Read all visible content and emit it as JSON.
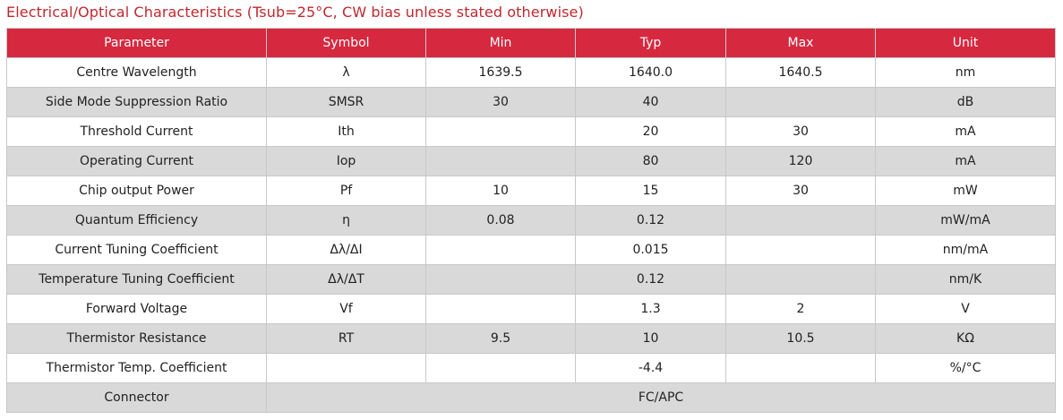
{
  "title": "Electrical/Optical Characteristics (Tsub=25°C, CW bias unless stated otherwise)",
  "headers": [
    "Parameter",
    "Symbol",
    "Min",
    "Typ",
    "Max",
    "Unit"
  ],
  "rows": [
    {
      "parameter": "Centre Wavelength",
      "symbol": "λ",
      "min": "1639.5",
      "typ": "1640.0",
      "max": "1640.5",
      "unit": "nm"
    },
    {
      "parameter": "Side Mode Suppression Ratio",
      "symbol": "SMSR",
      "min": "30",
      "typ": "40",
      "max": "",
      "unit": "dB"
    },
    {
      "parameter": "Threshold Current",
      "symbol": "Ith",
      "min": "",
      "typ": "20",
      "max": "30",
      "unit": "mA"
    },
    {
      "parameter": "Operating Current",
      "symbol": "Iop",
      "min": "",
      "typ": "80",
      "max": "120",
      "unit": "mA"
    },
    {
      "parameter": "Chip output Power",
      "symbol": "Pf",
      "min": "10",
      "typ": "15",
      "max": "30",
      "unit": "mW"
    },
    {
      "parameter": "Quantum Efficiency",
      "symbol": "η",
      "min": "0.08",
      "typ": "0.12",
      "max": "",
      "unit": "mW/mA"
    },
    {
      "parameter": "Current Tuning Coefficient",
      "symbol": "Δλ/ΔI",
      "min": "",
      "typ": "0.015",
      "max": "",
      "unit": "nm/mA"
    },
    {
      "parameter": "Temperature Tuning Coefficient",
      "symbol": "Δλ/ΔT",
      "min": "",
      "typ": "0.12",
      "max": "",
      "unit": "nm/K"
    },
    {
      "parameter": "Forward Voltage",
      "symbol": "Vf",
      "min": "",
      "typ": "1.3",
      "max": "2",
      "unit": "V"
    },
    {
      "parameter": "Thermistor Resistance",
      "symbol": "RT",
      "min": "9.5",
      "typ": "10",
      "max": "10.5",
      "unit": "KΩ"
    },
    {
      "parameter": "Thermistor Temp. Coefficient",
      "symbol": "",
      "min": "",
      "typ": "-4.4",
      "max": "",
      "unit": "%/°C"
    }
  ],
  "connector": {
    "parameter": "Connector",
    "value": "FC/APC"
  }
}
